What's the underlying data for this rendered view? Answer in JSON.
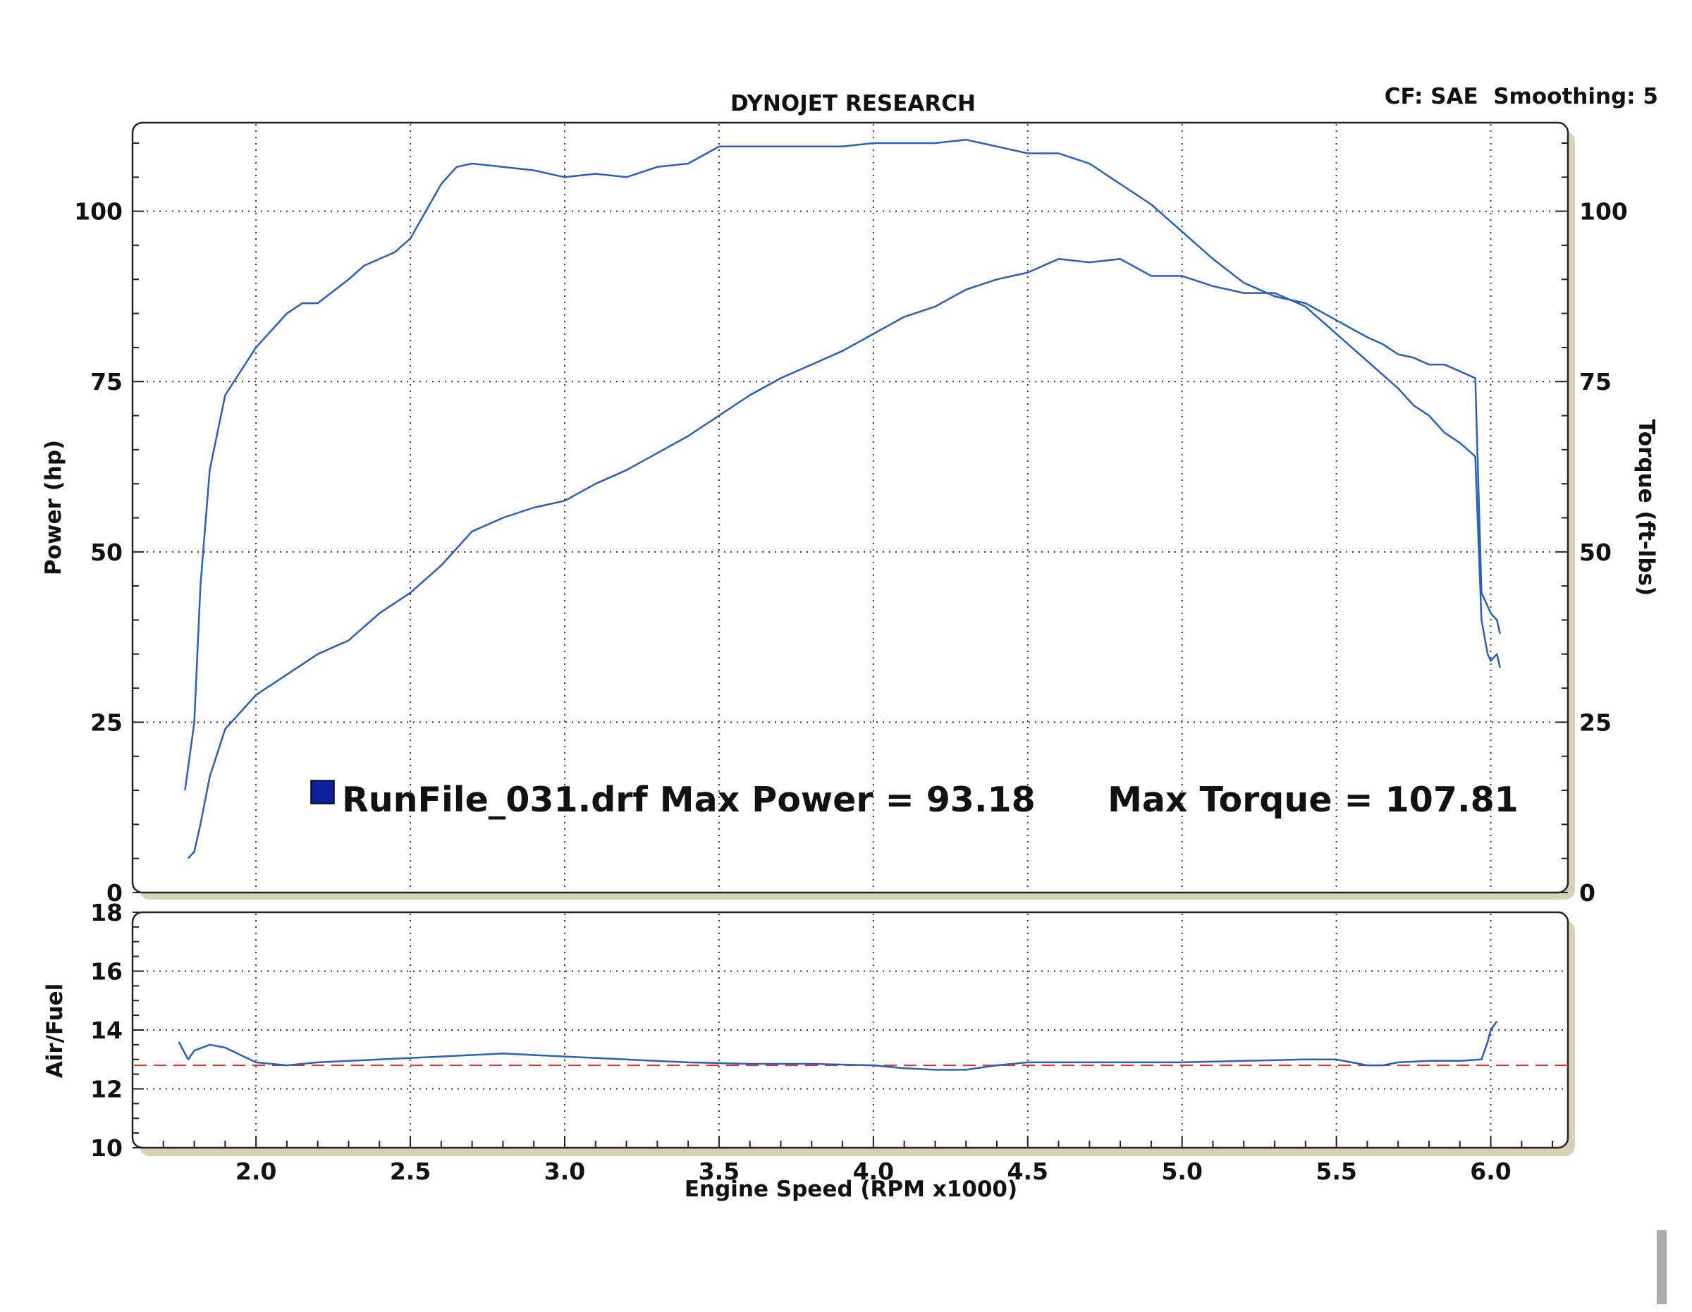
{
  "chart_data": [
    {
      "type": "line",
      "title": "DYNOJET RESEARCH",
      "subtitle": "CF: SAE  Smoothing: 5",
      "xlabel": "Engine Speed (RPM x1000)",
      "ylabel": "Power (hp)",
      "y2label": "Torque (ft-lbs)",
      "xlim": [
        1.6,
        6.25
      ],
      "ylim": [
        0,
        113
      ],
      "y2lim": [
        0,
        113
      ],
      "x_ticks": [
        "2.0",
        "2.5",
        "3.0",
        "3.5",
        "4.0",
        "4.5",
        "5.0",
        "5.5",
        "6.0"
      ],
      "y_ticks": [
        "0",
        "25",
        "50",
        "75",
        "100"
      ],
      "y2_ticks": [
        "0",
        "25",
        "50",
        "75",
        "100"
      ],
      "grid": true,
      "legend": {
        "swatch_color": "#0b1f9a",
        "text": "RunFile_031.drf Max Power = 93.18      Max Torque = 107.81"
      },
      "series": [
        {
          "axis": "left",
          "color": "#2a5fb8",
          "x": [
            1.78,
            1.8,
            1.82,
            1.85,
            1.9,
            2.0,
            2.1,
            2.2,
            2.3,
            2.4,
            2.5,
            2.6,
            2.7,
            2.8,
            2.9,
            3.0,
            3.1,
            3.2,
            3.3,
            3.4,
            3.5,
            3.6,
            3.7,
            3.8,
            3.9,
            4.0,
            4.1,
            4.2,
            4.3,
            4.4,
            4.5,
            4.6,
            4.7,
            4.8,
            4.9,
            5.0,
            5.1,
            5.2,
            5.3,
            5.4,
            5.5,
            5.6,
            5.65,
            5.7,
            5.75,
            5.8,
            5.85,
            5.9,
            5.95,
            5.97,
            5.99,
            6.0,
            6.02,
            6.03
          ],
          "y": [
            5,
            6,
            10,
            17,
            24,
            29,
            32,
            35,
            37,
            41,
            44,
            48,
            53,
            55,
            56.5,
            57.5,
            60,
            62,
            64.5,
            67,
            70,
            73,
            75.5,
            77.5,
            79.5,
            82,
            84.5,
            86,
            88.5,
            90,
            91,
            93,
            92.5,
            93,
            90.5,
            90.5,
            89,
            88,
            88,
            86,
            82,
            78,
            76,
            74,
            71.5,
            70,
            67.5,
            66,
            64,
            40,
            35,
            34,
            35,
            33
          ]
        },
        {
          "axis": "right",
          "color": "#2a5fb8",
          "x": [
            1.77,
            1.8,
            1.82,
            1.85,
            1.9,
            2.0,
            2.1,
            2.15,
            2.2,
            2.3,
            2.35,
            2.45,
            2.5,
            2.6,
            2.65,
            2.7,
            2.8,
            2.9,
            3.0,
            3.1,
            3.2,
            3.3,
            3.4,
            3.5,
            3.6,
            3.7,
            3.8,
            3.9,
            4.0,
            4.1,
            4.2,
            4.3,
            4.4,
            4.5,
            4.6,
            4.7,
            4.8,
            4.9,
            5.0,
            5.1,
            5.2,
            5.3,
            5.4,
            5.5,
            5.6,
            5.65,
            5.7,
            5.75,
            5.8,
            5.85,
            5.9,
            5.95,
            5.97,
            5.99,
            6.0,
            6.02,
            6.03
          ],
          "y": [
            15,
            25,
            45,
            62,
            73,
            80,
            85,
            86.5,
            86.5,
            90,
            92,
            94,
            96,
            104,
            106.5,
            107,
            106.5,
            106,
            105,
            105.5,
            105,
            106.5,
            107,
            109.5,
            109.5,
            109.5,
            109.5,
            109.5,
            110,
            110,
            110,
            110.5,
            109.5,
            108.5,
            108.5,
            107,
            104,
            101,
            97,
            93,
            89.5,
            87.5,
            86.5,
            84,
            81.5,
            80.5,
            79,
            78.5,
            77.5,
            77.5,
            76.5,
            75.5,
            44,
            42,
            41,
            40,
            38
          ]
        }
      ]
    },
    {
      "type": "line",
      "xlabel": "Engine Speed (RPM x1000)",
      "ylabel": "Air/Fuel",
      "xlim": [
        1.6,
        6.25
      ],
      "ylim": [
        10,
        18
      ],
      "x_ticks": [
        "2.0",
        "2.5",
        "3.0",
        "3.5",
        "4.0",
        "4.5",
        "5.0",
        "5.5",
        "6.0"
      ],
      "y_ticks": [
        "10",
        "12",
        "14",
        "16",
        "18"
      ],
      "grid": true,
      "reference_line": {
        "y": 12.8,
        "color": "#e03030",
        "style": "dashed"
      },
      "series": [
        {
          "color": "#2a5fb8",
          "x": [
            1.75,
            1.78,
            1.8,
            1.85,
            1.9,
            2.0,
            2.1,
            2.2,
            2.4,
            2.6,
            2.8,
            3.0,
            3.2,
            3.4,
            3.6,
            3.8,
            4.0,
            4.1,
            4.2,
            4.3,
            4.4,
            4.5,
            4.6,
            4.8,
            5.0,
            5.2,
            5.4,
            5.5,
            5.6,
            5.65,
            5.7,
            5.8,
            5.9,
            5.97,
            5.99,
            6.0,
            6.02
          ],
          "y": [
            13.6,
            13.0,
            13.3,
            13.5,
            13.4,
            12.9,
            12.8,
            12.9,
            13.0,
            13.1,
            13.2,
            13.1,
            13.0,
            12.9,
            12.85,
            12.85,
            12.8,
            12.7,
            12.65,
            12.65,
            12.8,
            12.9,
            12.9,
            12.9,
            12.9,
            12.95,
            13.0,
            13.0,
            12.8,
            12.8,
            12.9,
            12.95,
            12.95,
            13.0,
            13.6,
            14.0,
            14.3
          ]
        }
      ]
    }
  ]
}
